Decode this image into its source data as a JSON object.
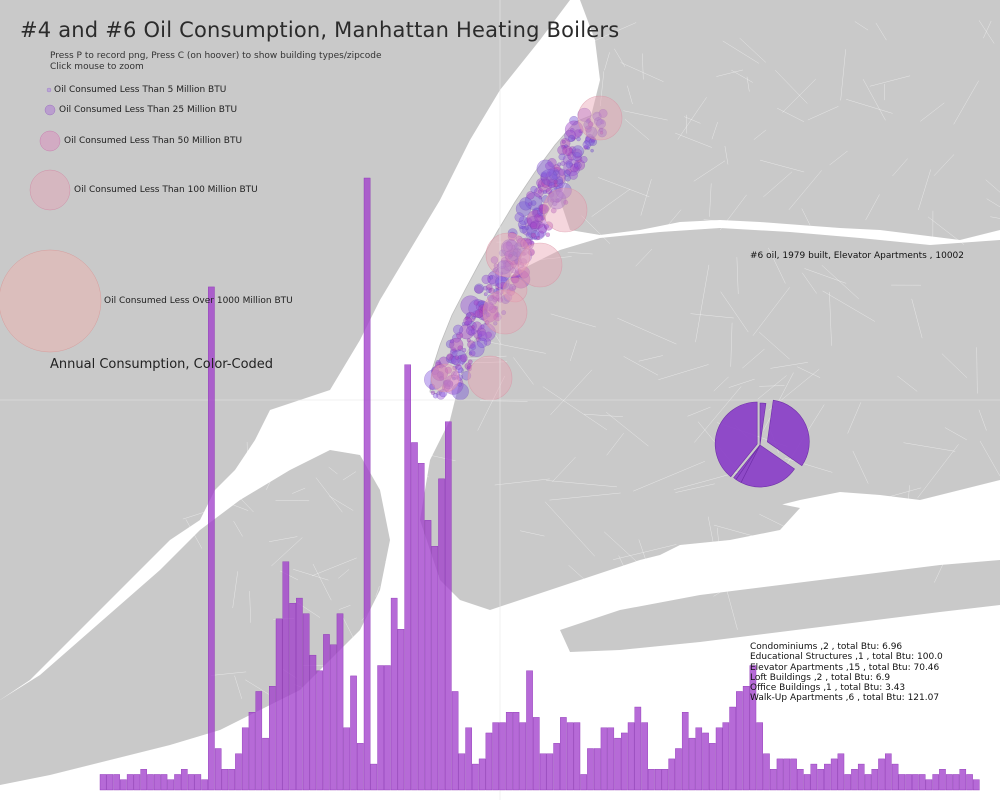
{
  "title": "#4 and #6 Oil Consumption, Manhattan Heating Boilers",
  "instructions": [
    "Press P to record png, Press C (on hoover) to show building types/zipcode",
    "Click mouse to zoom"
  ],
  "size_legend": [
    {
      "label": "Oil Consumed Less Than 5 Million BTU",
      "color": "#b8a0d8"
    },
    {
      "label": "Oil Consumed Less Than 25 Million BTU",
      "color": "#b48cd0"
    },
    {
      "label": "Oil Consumed Less Than 50 Million BTU",
      "color": "#d898c0"
    },
    {
      "label": "Oil Consumed Less Than 100 Million BTU",
      "color": "#e0a8b8"
    },
    {
      "label": "Oil Consumed Less Over 1000 Million BTU",
      "color": "#e8b8b4"
    }
  ],
  "annual_label": "Annual Consumption, Color-Coded",
  "hover_label": "#6 oil, 1979 built, Elevator Apartments , 10002",
  "building_summary": [
    "Condominiums ,2 , total Btu: 6.96",
    "Educational Structures ,1 , total Btu: 100.0",
    "Elevator Apartments ,15 , total Btu: 70.46",
    "Loft Buildings ,2 , total Btu: 6.9",
    "Office Buildings ,1 , total Btu: 3.43",
    "Walk-Up Apartments ,6 , total Btu: 121.07"
  ],
  "pie_values": [
    6.96,
    100.0,
    70.46,
    6.9,
    3.43,
    121.07
  ],
  "histogram_values": [
    3,
    3,
    3,
    2,
    3,
    3,
    4,
    3,
    3,
    3,
    2,
    3,
    4,
    3,
    3,
    2,
    97,
    8,
    4,
    4,
    7,
    12,
    15,
    19,
    10,
    20,
    33,
    44,
    36,
    37,
    34,
    26,
    23,
    30,
    28,
    34,
    12,
    22,
    9,
    118,
    5,
    24,
    24,
    37,
    31,
    82,
    67,
    63,
    52,
    47,
    60,
    71,
    19,
    7,
    12,
    5,
    6,
    11,
    13,
    13,
    15,
    15,
    13,
    23,
    14,
    7,
    7,
    9,
    14,
    13,
    13,
    3,
    8,
    8,
    12,
    12,
    10,
    11,
    13,
    16,
    13,
    4,
    4,
    4,
    6,
    8,
    15,
    10,
    12,
    11,
    9,
    12,
    13,
    16,
    19,
    20,
    24,
    13,
    7,
    4,
    6,
    6,
    6,
    4,
    3,
    5,
    4,
    5,
    6,
    7,
    3,
    4,
    5,
    3,
    4,
    6,
    7,
    5,
    3,
    3,
    3,
    3,
    2,
    3,
    4,
    3,
    3,
    4,
    3,
    2
  ]
}
